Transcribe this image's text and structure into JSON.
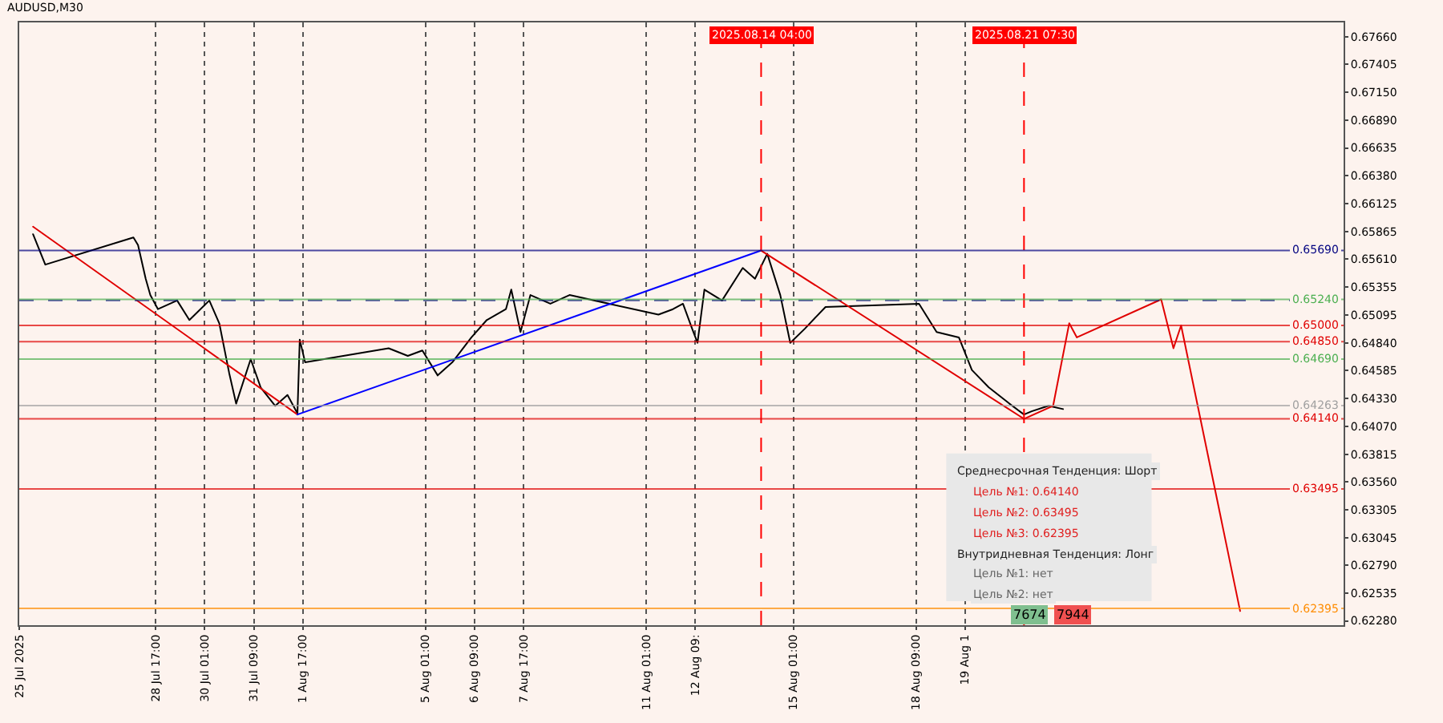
{
  "chart_data": {
    "type": "line",
    "title": "AUDUSD,M30",
    "xlim": [
      "2025-07-25T00:00",
      "2025-08-30T00:00"
    ],
    "ylim": [
      0.6224,
      0.6779
    ],
    "xticks": [
      {
        "value": "2025-07-25",
        "label": "25 Jul 2025"
      },
      {
        "value": "2025-07-28T17:00",
        "label": "28 Jul 17:00"
      },
      {
        "value": "2025-07-30T01:00",
        "label": "30 Jul 01:00"
      },
      {
        "value": "2025-07-31T09:00",
        "label": "31 Jul 09:00"
      },
      {
        "value": "2025-08-01T17:00",
        "label": "1 Aug 17:00"
      },
      {
        "value": "2025-08-05T01:00",
        "label": "5 Aug 01:00"
      },
      {
        "value": "2025-08-06T09:00",
        "label": "6 Aug 09:00"
      },
      {
        "value": "2025-08-07T17:00",
        "label": "7 Aug 17:00"
      },
      {
        "value": "2025-08-11T01:00",
        "label": "11 Aug 01:00"
      },
      {
        "value": "2025-08-12T09:00",
        "label": "12 Aug 09:"
      },
      {
        "value": "2025-08-15T01:00",
        "label": "15 Aug 01:00"
      },
      {
        "value": "2025-08-18T09:00",
        "label": "18 Aug 09:00"
      },
      {
        "value": "2025-08-19T17:00",
        "label": "19 Aug 1"
      }
    ],
    "yticks": [
      {
        "value": 0.6766,
        "label": "0.67660"
      },
      {
        "value": 0.67405,
        "label": "0.67405"
      },
      {
        "value": 0.6715,
        "label": "0.67150"
      },
      {
        "value": 0.6689,
        "label": "0.66890"
      },
      {
        "value": 0.66635,
        "label": "0.66635"
      },
      {
        "value": 0.6638,
        "label": "0.66380"
      },
      {
        "value": 0.66125,
        "label": "0.66125"
      },
      {
        "value": 0.65865,
        "label": "0.65865"
      },
      {
        "value": 0.6561,
        "label": "0.65610"
      },
      {
        "value": 0.65355,
        "label": "0.65355"
      },
      {
        "value": 0.65095,
        "label": "0.65095"
      },
      {
        "value": 0.6484,
        "label": "0.64840"
      },
      {
        "value": 0.64585,
        "label": "0.64585"
      },
      {
        "value": 0.6433,
        "label": "0.64330"
      },
      {
        "value": 0.6407,
        "label": "0.64070"
      },
      {
        "value": 0.63815,
        "label": "0.63815"
      },
      {
        "value": 0.6356,
        "label": "0.63560"
      },
      {
        "value": 0.63305,
        "label": "0.63305"
      },
      {
        "value": 0.63045,
        "label": "0.63045"
      },
      {
        "value": 0.6279,
        "label": "0.62790"
      },
      {
        "value": 0.62535,
        "label": "0.62535"
      },
      {
        "value": 0.6228,
        "label": "0.62280"
      }
    ],
    "grid": "x",
    "marker": "none",
    "series": [
      {
        "color": "#000000",
        "x": [
          "2025-07-25T09:00",
          "2025-07-25T17:00",
          "2025-07-28T02:30",
          "2025-07-28T05:30",
          "2025-07-28T10:30",
          "2025-07-28T13:30",
          "2025-07-28T18:30",
          "2025-07-29T07:00",
          "2025-07-29T15:00",
          "2025-07-30T04:00",
          "2025-07-30T10:30",
          "2025-07-30T17:00",
          "2025-07-30T21:30",
          "2025-07-31T07:00",
          "2025-07-31T13:30",
          "2025-07-31T23:00",
          "2025-08-01T07:00",
          "2025-08-01T13:30",
          "2025-08-01T15:00",
          "2025-08-01T18:30",
          "2025-08-04T01:00",
          "2025-08-04T13:30",
          "2025-08-04T23:00",
          "2025-08-05T09:00",
          "2025-08-05T18:30",
          "2025-08-06T07:00",
          "2025-08-06T17:00",
          "2025-08-07T05:30",
          "2025-08-07T09:00",
          "2025-08-07T15:00",
          "2025-08-07T21:30",
          "2025-08-08T10:30",
          "2025-08-08T23:00",
          "2025-08-11T09:00",
          "2025-08-11T18:30",
          "2025-08-12T01:00",
          "2025-08-12T07:00",
          "2025-08-12T10:30",
          "2025-08-12T15:00",
          "2025-08-13T02:30",
          "2025-08-13T16:00",
          "2025-08-14T00:00",
          "2025-08-14T08:00",
          "2025-08-14T16:30",
          "2025-08-14T23:00",
          "2025-08-15T08:30",
          "2025-08-15T22:00",
          "2025-08-18T11:00",
          "2025-08-18T22:30",
          "2025-08-19T13:00",
          "2025-08-19T21:30",
          "2025-08-20T08:30",
          "2025-08-20T22:00",
          "2025-08-21T07:30",
          "2025-08-21T12:30",
          "2025-08-21T23:30",
          "2025-08-22T09:00"
        ],
        "values": [
          0.6584,
          0.6556,
          0.6581,
          0.6574,
          0.6543,
          0.6528,
          0.6515,
          0.6523,
          0.6505,
          0.6523,
          0.6502,
          0.6456,
          0.6428,
          0.6469,
          0.6443,
          0.6426,
          0.6436,
          0.6419,
          0.6487,
          0.6466,
          0.6479,
          0.6472,
          0.6477,
          0.6454,
          0.6466,
          0.6489,
          0.6505,
          0.6515,
          0.6533,
          0.6494,
          0.6528,
          0.652,
          0.6528,
          0.651,
          0.6515,
          0.652,
          0.6497,
          0.6484,
          0.6533,
          0.6523,
          0.6553,
          0.6543,
          0.6566,
          0.6528,
          0.6484,
          0.6497,
          0.6517,
          0.652,
          0.6494,
          0.6489,
          0.6459,
          0.6443,
          0.6428,
          0.6418,
          0.6421,
          0.6426,
          0.6423
        ]
      },
      {
        "color": "#e00000",
        "x": [
          "2025-07-25T09:00",
          "2025-08-01T13:30"
        ],
        "values": [
          0.6591,
          0.6418
        ]
      },
      {
        "color": "#0000ff",
        "x": [
          "2025-08-01T13:30",
          "2025-08-14T04:00"
        ],
        "values": [
          0.6418,
          0.6569
        ]
      },
      {
        "color": "#e00000",
        "x": [
          "2025-08-14T04:00",
          "2025-08-21T07:30"
        ],
        "values": [
          0.6569,
          0.6414
        ]
      },
      {
        "color": "#e00000",
        "x": [
          "2025-08-21T07:30",
          "2025-08-22T02:30",
          "2025-08-22T13:00",
          "2025-08-22T18:00",
          "2025-08-25T01:00",
          "2025-08-25T09:00",
          "2025-08-25T14:00",
          "2025-08-27T04:30"
        ],
        "values": [
          0.6414,
          0.6426,
          0.6502,
          0.6489,
          0.6524,
          0.6479,
          0.65,
          0.6237
        ]
      }
    ],
    "ref_lines": [
      {
        "axis": "x",
        "value": "2025-08-14T04:00",
        "label": "2025.08.14 04:00",
        "color": "#ff0000",
        "line_style": "dashed"
      },
      {
        "axis": "x",
        "value": "2025-08-21T07:30",
        "label": "2025.08.21 07:30",
        "color": "#ff0000",
        "line_style": "dashed"
      },
      {
        "axis": "y",
        "value": 0.6569,
        "label": "0.65690",
        "color": "#000080",
        "line_style": "solid"
      },
      {
        "axis": "y",
        "value": 0.6523,
        "label": null,
        "color": "#000080",
        "line_style": "dashed"
      },
      {
        "axis": "y",
        "value": 0.6524,
        "label": "0.65240",
        "color": "#4caf50",
        "line_style": "solid"
      },
      {
        "axis": "y",
        "value": 0.65,
        "label": "0.65000",
        "color": "#e00000",
        "line_style": "solid"
      },
      {
        "axis": "y",
        "value": 0.6485,
        "label": "0.64850",
        "color": "#e00000",
        "line_style": "solid"
      },
      {
        "axis": "y",
        "value": 0.6469,
        "label": "0.64690",
        "color": "#4caf50",
        "line_style": "solid"
      },
      {
        "axis": "y",
        "value": 0.64263,
        "label": "0.64263",
        "color": "#a0a0a0",
        "line_style": "solid"
      },
      {
        "axis": "y",
        "value": 0.6414,
        "label": "0.64140",
        "color": "#e00000",
        "line_style": "solid"
      },
      {
        "axis": "y",
        "value": 0.63495,
        "label": "0.63495",
        "color": "#e00000",
        "line_style": "solid"
      },
      {
        "axis": "y",
        "value": 0.62395,
        "label": "0.62395",
        "color": "#ff8c00",
        "line_style": "solid"
      }
    ],
    "annotations": [
      "Среднесрочная Тенденция: Шорт",
      "Цель №1: 0.64140",
      "Цель №2: 0.63495",
      "Цель №3: 0.62395",
      "Внутридневная Тенденция: Лонг",
      "Цель №1: нет",
      "Цель №2: нет",
      "7674",
      "7944"
    ]
  }
}
